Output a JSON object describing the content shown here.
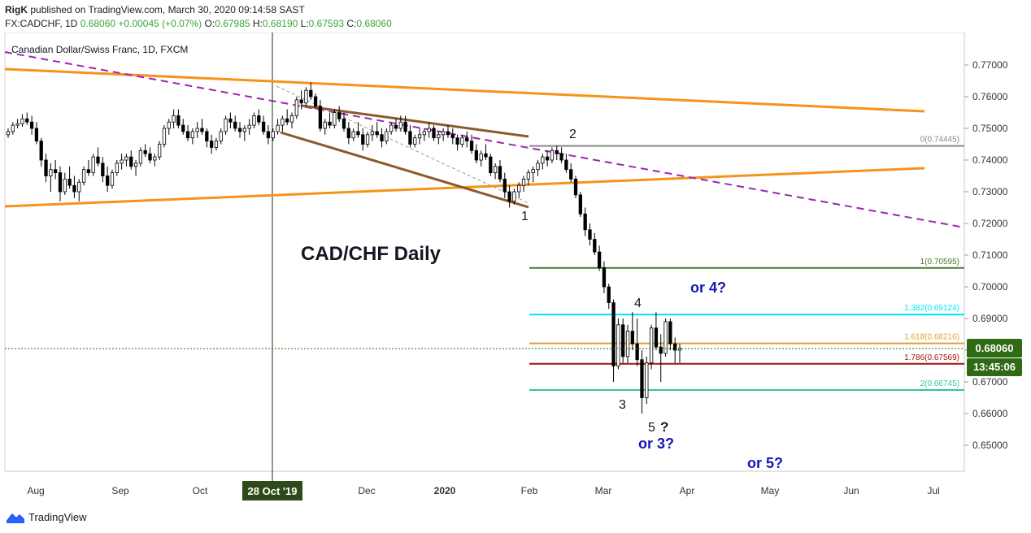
{
  "header": {
    "author": "RigK",
    "published_text": "published on TradingView.com, March 30, 2020 09:14:58 SAST",
    "symbol_line": "FX:CADCHF, 1D",
    "last": "0.68060",
    "change": "+0.00045 (+0.07%)",
    "o_label": "O:",
    "o": "0.67985",
    "h_label": "H:",
    "h": "0.68190",
    "l_label": "L:",
    "l": "0.67593",
    "c_label": "C:",
    "c": "0.68060"
  },
  "footer": {
    "brand": "TradingView"
  },
  "colors": {
    "up": "#ffffff",
    "down": "#000000",
    "orange": "#f7931a",
    "brown": "#8b5a2b",
    "purple": "#9c27b0",
    "fib0": "#888888",
    "fib1": "#4a7a2a",
    "fib1382": "#00e5ff",
    "fib1618": "#e0a030",
    "fib1786": "#a01010",
    "fib2": "#33c4a3",
    "price_badge": "#2e6b14"
  },
  "chart_data": {
    "type": "candlestick",
    "title": "Canadian Dollar/Swiss Franc, 1D, FXCM",
    "annotation_title": "CAD/CHF Daily",
    "ylim": [
      0.64,
      0.775
    ],
    "y_ticks": [
      "0.77000",
      "0.76000",
      "0.75000",
      "0.74000",
      "0.73000",
      "0.72000",
      "0.71000",
      "0.70000",
      "0.69000",
      "0.68000",
      "0.67000",
      "0.66000",
      "0.65000"
    ],
    "x_ticks": [
      "Aug",
      "Sep",
      "Oct",
      "Dec",
      "2020",
      "Feb",
      "Mar",
      "Apr",
      "May",
      "Jun",
      "Jul"
    ],
    "crosshair_label": "28 Oct '19",
    "current_price": "0.68060",
    "countdown": "13:45:06",
    "fib_levels": [
      {
        "label": "0(0.74445)",
        "value": 0.74445
      },
      {
        "label": "1(0.70595)",
        "value": 0.70595
      },
      {
        "label": "1.382(0.69124)",
        "value": 0.69124
      },
      {
        "label": "1.618(0.68216)",
        "value": 0.68216
      },
      {
        "label": "1.786(0.67569)",
        "value": 0.67569
      },
      {
        "label": "2(0.66745)",
        "value": 0.66745
      }
    ],
    "wave_labels": [
      "1",
      "2",
      "3",
      "4",
      "5",
      "?"
    ],
    "alt_labels": [
      "or 4?",
      "or 3?",
      "or 5?"
    ],
    "candles": [
      [
        0.748,
        0.75,
        0.747,
        0.749
      ],
      [
        0.749,
        0.752,
        0.748,
        0.751
      ],
      [
        0.751,
        0.753,
        0.75,
        0.7515
      ],
      [
        0.7515,
        0.7545,
        0.7505,
        0.753
      ],
      [
        0.753,
        0.755,
        0.751,
        0.752
      ],
      [
        0.752,
        0.754,
        0.748,
        0.75
      ],
      [
        0.75,
        0.752,
        0.745,
        0.746
      ],
      [
        0.746,
        0.747,
        0.738,
        0.74
      ],
      [
        0.74,
        0.742,
        0.733,
        0.735
      ],
      [
        0.735,
        0.739,
        0.73,
        0.737
      ],
      [
        0.737,
        0.74,
        0.734,
        0.736
      ],
      [
        0.736,
        0.738,
        0.727,
        0.73
      ],
      [
        0.73,
        0.736,
        0.729,
        0.734
      ],
      [
        0.734,
        0.738,
        0.731,
        0.732
      ],
      [
        0.732,
        0.735,
        0.728,
        0.73
      ],
      [
        0.73,
        0.734,
        0.727,
        0.733
      ],
      [
        0.733,
        0.738,
        0.732,
        0.737
      ],
      [
        0.737,
        0.74,
        0.735,
        0.736
      ],
      [
        0.736,
        0.742,
        0.735,
        0.741
      ],
      [
        0.741,
        0.744,
        0.738,
        0.739
      ],
      [
        0.739,
        0.741,
        0.733,
        0.735
      ],
      [
        0.735,
        0.738,
        0.73,
        0.732
      ],
      [
        0.732,
        0.737,
        0.731,
        0.736
      ],
      [
        0.736,
        0.74,
        0.735,
        0.739
      ],
      [
        0.739,
        0.742,
        0.737,
        0.74
      ],
      [
        0.74,
        0.742,
        0.738,
        0.741
      ],
      [
        0.741,
        0.743,
        0.737,
        0.738
      ],
      [
        0.738,
        0.74,
        0.735,
        0.739
      ],
      [
        0.739,
        0.744,
        0.738,
        0.743
      ],
      [
        0.743,
        0.745,
        0.741,
        0.742
      ],
      [
        0.742,
        0.744,
        0.739,
        0.74
      ],
      [
        0.74,
        0.742,
        0.738,
        0.741
      ],
      [
        0.741,
        0.746,
        0.74,
        0.745
      ],
      [
        0.745,
        0.751,
        0.744,
        0.75
      ],
      [
        0.75,
        0.753,
        0.748,
        0.752
      ],
      [
        0.752,
        0.756,
        0.75,
        0.754
      ],
      [
        0.754,
        0.756,
        0.75,
        0.751
      ],
      [
        0.751,
        0.753,
        0.748,
        0.749
      ],
      [
        0.749,
        0.751,
        0.746,
        0.747
      ],
      [
        0.747,
        0.75,
        0.745,
        0.749
      ],
      [
        0.749,
        0.752,
        0.747,
        0.75
      ],
      [
        0.75,
        0.753,
        0.748,
        0.749
      ],
      [
        0.749,
        0.75,
        0.744,
        0.746
      ],
      [
        0.746,
        0.748,
        0.742,
        0.744
      ],
      [
        0.744,
        0.747,
        0.743,
        0.746
      ],
      [
        0.746,
        0.75,
        0.745,
        0.749
      ],
      [
        0.749,
        0.754,
        0.748,
        0.753
      ],
      [
        0.753,
        0.755,
        0.75,
        0.752
      ],
      [
        0.752,
        0.754,
        0.749,
        0.75
      ],
      [
        0.75,
        0.752,
        0.747,
        0.749
      ],
      [
        0.749,
        0.751,
        0.746,
        0.75
      ],
      [
        0.75,
        0.753,
        0.748,
        0.751
      ],
      [
        0.751,
        0.755,
        0.75,
        0.754
      ],
      [
        0.754,
        0.756,
        0.751,
        0.752
      ],
      [
        0.752,
        0.754,
        0.748,
        0.749
      ],
      [
        0.749,
        0.751,
        0.745,
        0.747
      ],
      [
        0.747,
        0.75,
        0.746,
        0.749
      ],
      [
        0.749,
        0.753,
        0.748,
        0.751
      ],
      [
        0.751,
        0.754,
        0.749,
        0.753
      ],
      [
        0.753,
        0.756,
        0.751,
        0.752
      ],
      [
        0.752,
        0.755,
        0.75,
        0.754
      ],
      [
        0.754,
        0.76,
        0.753,
        0.759
      ],
      [
        0.759,
        0.762,
        0.756,
        0.758
      ],
      [
        0.758,
        0.763,
        0.757,
        0.762
      ],
      [
        0.762,
        0.7645,
        0.759,
        0.76
      ],
      [
        0.76,
        0.761,
        0.756,
        0.757
      ],
      [
        0.757,
        0.759,
        0.749,
        0.75
      ],
      [
        0.75,
        0.753,
        0.748,
        0.752
      ],
      [
        0.752,
        0.755,
        0.75,
        0.751
      ],
      [
        0.751,
        0.756,
        0.75,
        0.755
      ],
      [
        0.755,
        0.757,
        0.752,
        0.753
      ],
      [
        0.753,
        0.755,
        0.749,
        0.75
      ],
      [
        0.75,
        0.752,
        0.745,
        0.747
      ],
      [
        0.747,
        0.75,
        0.746,
        0.749
      ],
      [
        0.749,
        0.752,
        0.747,
        0.748
      ],
      [
        0.748,
        0.75,
        0.743,
        0.745
      ],
      [
        0.745,
        0.749,
        0.744,
        0.748
      ],
      [
        0.748,
        0.751,
        0.746,
        0.749
      ],
      [
        0.749,
        0.752,
        0.747,
        0.748
      ],
      [
        0.748,
        0.75,
        0.744,
        0.746
      ],
      [
        0.746,
        0.75,
        0.745,
        0.749
      ],
      [
        0.749,
        0.752,
        0.748,
        0.751
      ],
      [
        0.751,
        0.753,
        0.749,
        0.75
      ],
      [
        0.75,
        0.754,
        0.749,
        0.752
      ],
      [
        0.752,
        0.754,
        0.748,
        0.749
      ],
      [
        0.749,
        0.751,
        0.744,
        0.745
      ],
      [
        0.745,
        0.748,
        0.744,
        0.747
      ],
      [
        0.747,
        0.75,
        0.745,
        0.748
      ],
      [
        0.748,
        0.75,
        0.746,
        0.749
      ],
      [
        0.749,
        0.752,
        0.747,
        0.75
      ],
      [
        0.75,
        0.751,
        0.746,
        0.747
      ],
      [
        0.747,
        0.749,
        0.745,
        0.748
      ],
      [
        0.748,
        0.75,
        0.746,
        0.749
      ],
      [
        0.749,
        0.751,
        0.747,
        0.748
      ],
      [
        0.748,
        0.75,
        0.745,
        0.747
      ],
      [
        0.747,
        0.748,
        0.743,
        0.745
      ],
      [
        0.745,
        0.748,
        0.744,
        0.747
      ],
      [
        0.747,
        0.749,
        0.744,
        0.746
      ],
      [
        0.746,
        0.748,
        0.742,
        0.743
      ],
      [
        0.743,
        0.745,
        0.739,
        0.74
      ],
      [
        0.74,
        0.743,
        0.738,
        0.742
      ],
      [
        0.742,
        0.745,
        0.74,
        0.741
      ],
      [
        0.741,
        0.742,
        0.735,
        0.736
      ],
      [
        0.736,
        0.739,
        0.734,
        0.738
      ],
      [
        0.738,
        0.74,
        0.733,
        0.734
      ],
      [
        0.734,
        0.736,
        0.728,
        0.73
      ],
      [
        0.73,
        0.732,
        0.725,
        0.727
      ],
      [
        0.727,
        0.731,
        0.726,
        0.73
      ],
      [
        0.73,
        0.733,
        0.728,
        0.732
      ],
      [
        0.732,
        0.735,
        0.73,
        0.734
      ],
      [
        0.734,
        0.737,
        0.732,
        0.736
      ],
      [
        0.736,
        0.738,
        0.733,
        0.737
      ],
      [
        0.737,
        0.74,
        0.735,
        0.739
      ],
      [
        0.739,
        0.742,
        0.737,
        0.741
      ],
      [
        0.741,
        0.743,
        0.738,
        0.74
      ],
      [
        0.74,
        0.744,
        0.739,
        0.743
      ],
      [
        0.743,
        0.7445,
        0.74,
        0.742
      ],
      [
        0.742,
        0.744,
        0.739,
        0.74
      ],
      [
        0.74,
        0.742,
        0.736,
        0.737
      ],
      [
        0.737,
        0.739,
        0.733,
        0.734
      ],
      [
        0.734,
        0.735,
        0.728,
        0.729
      ],
      [
        0.729,
        0.73,
        0.722,
        0.723
      ],
      [
        0.723,
        0.725,
        0.716,
        0.718
      ],
      [
        0.718,
        0.72,
        0.713,
        0.715
      ],
      [
        0.715,
        0.717,
        0.71,
        0.711
      ],
      [
        0.711,
        0.713,
        0.705,
        0.706
      ],
      [
        0.706,
        0.708,
        0.698,
        0.7
      ],
      [
        0.7,
        0.701,
        0.693,
        0.695
      ],
      [
        0.695,
        0.696,
        0.67,
        0.675
      ],
      [
        0.675,
        0.69,
        0.674,
        0.688
      ],
      [
        0.688,
        0.69,
        0.676,
        0.678
      ],
      [
        0.678,
        0.688,
        0.676,
        0.686
      ],
      [
        0.686,
        0.692,
        0.68,
        0.682
      ],
      [
        0.682,
        0.69,
        0.675,
        0.677
      ],
      [
        0.677,
        0.68,
        0.66,
        0.665
      ],
      [
        0.665,
        0.678,
        0.663,
        0.676
      ],
      [
        0.676,
        0.688,
        0.674,
        0.687
      ],
      [
        0.687,
        0.692,
        0.68,
        0.681
      ],
      [
        0.681,
        0.685,
        0.67,
        0.679
      ],
      [
        0.679,
        0.69,
        0.678,
        0.689
      ],
      [
        0.689,
        0.69,
        0.68,
        0.682
      ],
      [
        0.682,
        0.684,
        0.676,
        0.68
      ],
      [
        0.68,
        0.682,
        0.676,
        0.6806
      ]
    ]
  }
}
